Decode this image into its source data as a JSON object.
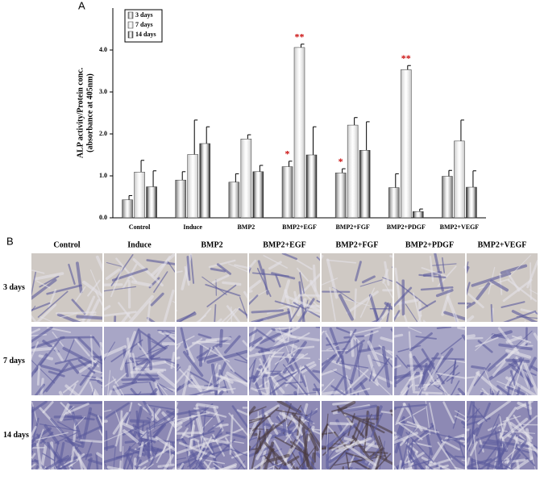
{
  "panel_a_label": "A",
  "chart_data": {
    "type": "bar",
    "ylabel": [
      "ALP activity/Protein conc.",
      "(absorbance at 405nm)"
    ],
    "categories": [
      "Control",
      "Induce",
      "BMP2",
      "BMP2+EGF",
      "BMP2+FGF",
      "BMP2+PDGF",
      "BMP2+VEGF"
    ],
    "series": [
      {
        "name": "3 days",
        "color": "#6b6b6b",
        "values": [
          0.43,
          0.9,
          0.85,
          1.22,
          1.07,
          0.72,
          0.99
        ],
        "errors": [
          0.1,
          0.2,
          0.2,
          0.13,
          0.1,
          0.33,
          0.14
        ],
        "marks": [
          null,
          null,
          null,
          "*",
          "*",
          null,
          null
        ]
      },
      {
        "name": "7 days",
        "color": "#c4c4c4",
        "values": [
          1.09,
          1.51,
          1.88,
          4.06,
          2.21,
          3.53,
          1.83
        ],
        "errors": [
          0.28,
          0.82,
          0.1,
          0.08,
          0.18,
          0.1,
          0.5
        ],
        "marks": [
          null,
          null,
          null,
          "**",
          null,
          "**",
          null
        ]
      },
      {
        "name": "14 days",
        "color": "#111111",
        "values": [
          0.74,
          1.77,
          1.1,
          1.5,
          1.61,
          0.15,
          0.73
        ],
        "errors": [
          0.38,
          0.4,
          0.15,
          0.67,
          0.68,
          0.06,
          0.39
        ],
        "marks": [
          null,
          null,
          null,
          null,
          null,
          null,
          null
        ]
      }
    ],
    "mark_color": "#cc1111",
    "ylim": [
      0,
      5
    ],
    "yticks": [
      {
        "value": 0,
        "label": "0.0"
      },
      {
        "value": 1,
        "label": "1.0"
      },
      {
        "value": 2,
        "label": "2.0"
      },
      {
        "value": 3,
        "label": "3.0"
      },
      {
        "value": 4,
        "label": "4.0"
      }
    ],
    "legend": "upper-left",
    "grid": false
  },
  "panel_b": {
    "label": "B",
    "columns": [
      "Control",
      "Induce",
      "BMP2",
      "BMP2+EGF",
      "BMP2+FGF",
      "BMP2+PDGF",
      "BMP2+VEGF"
    ],
    "rows": [
      "3 days",
      "7 days",
      "14 days"
    ]
  }
}
